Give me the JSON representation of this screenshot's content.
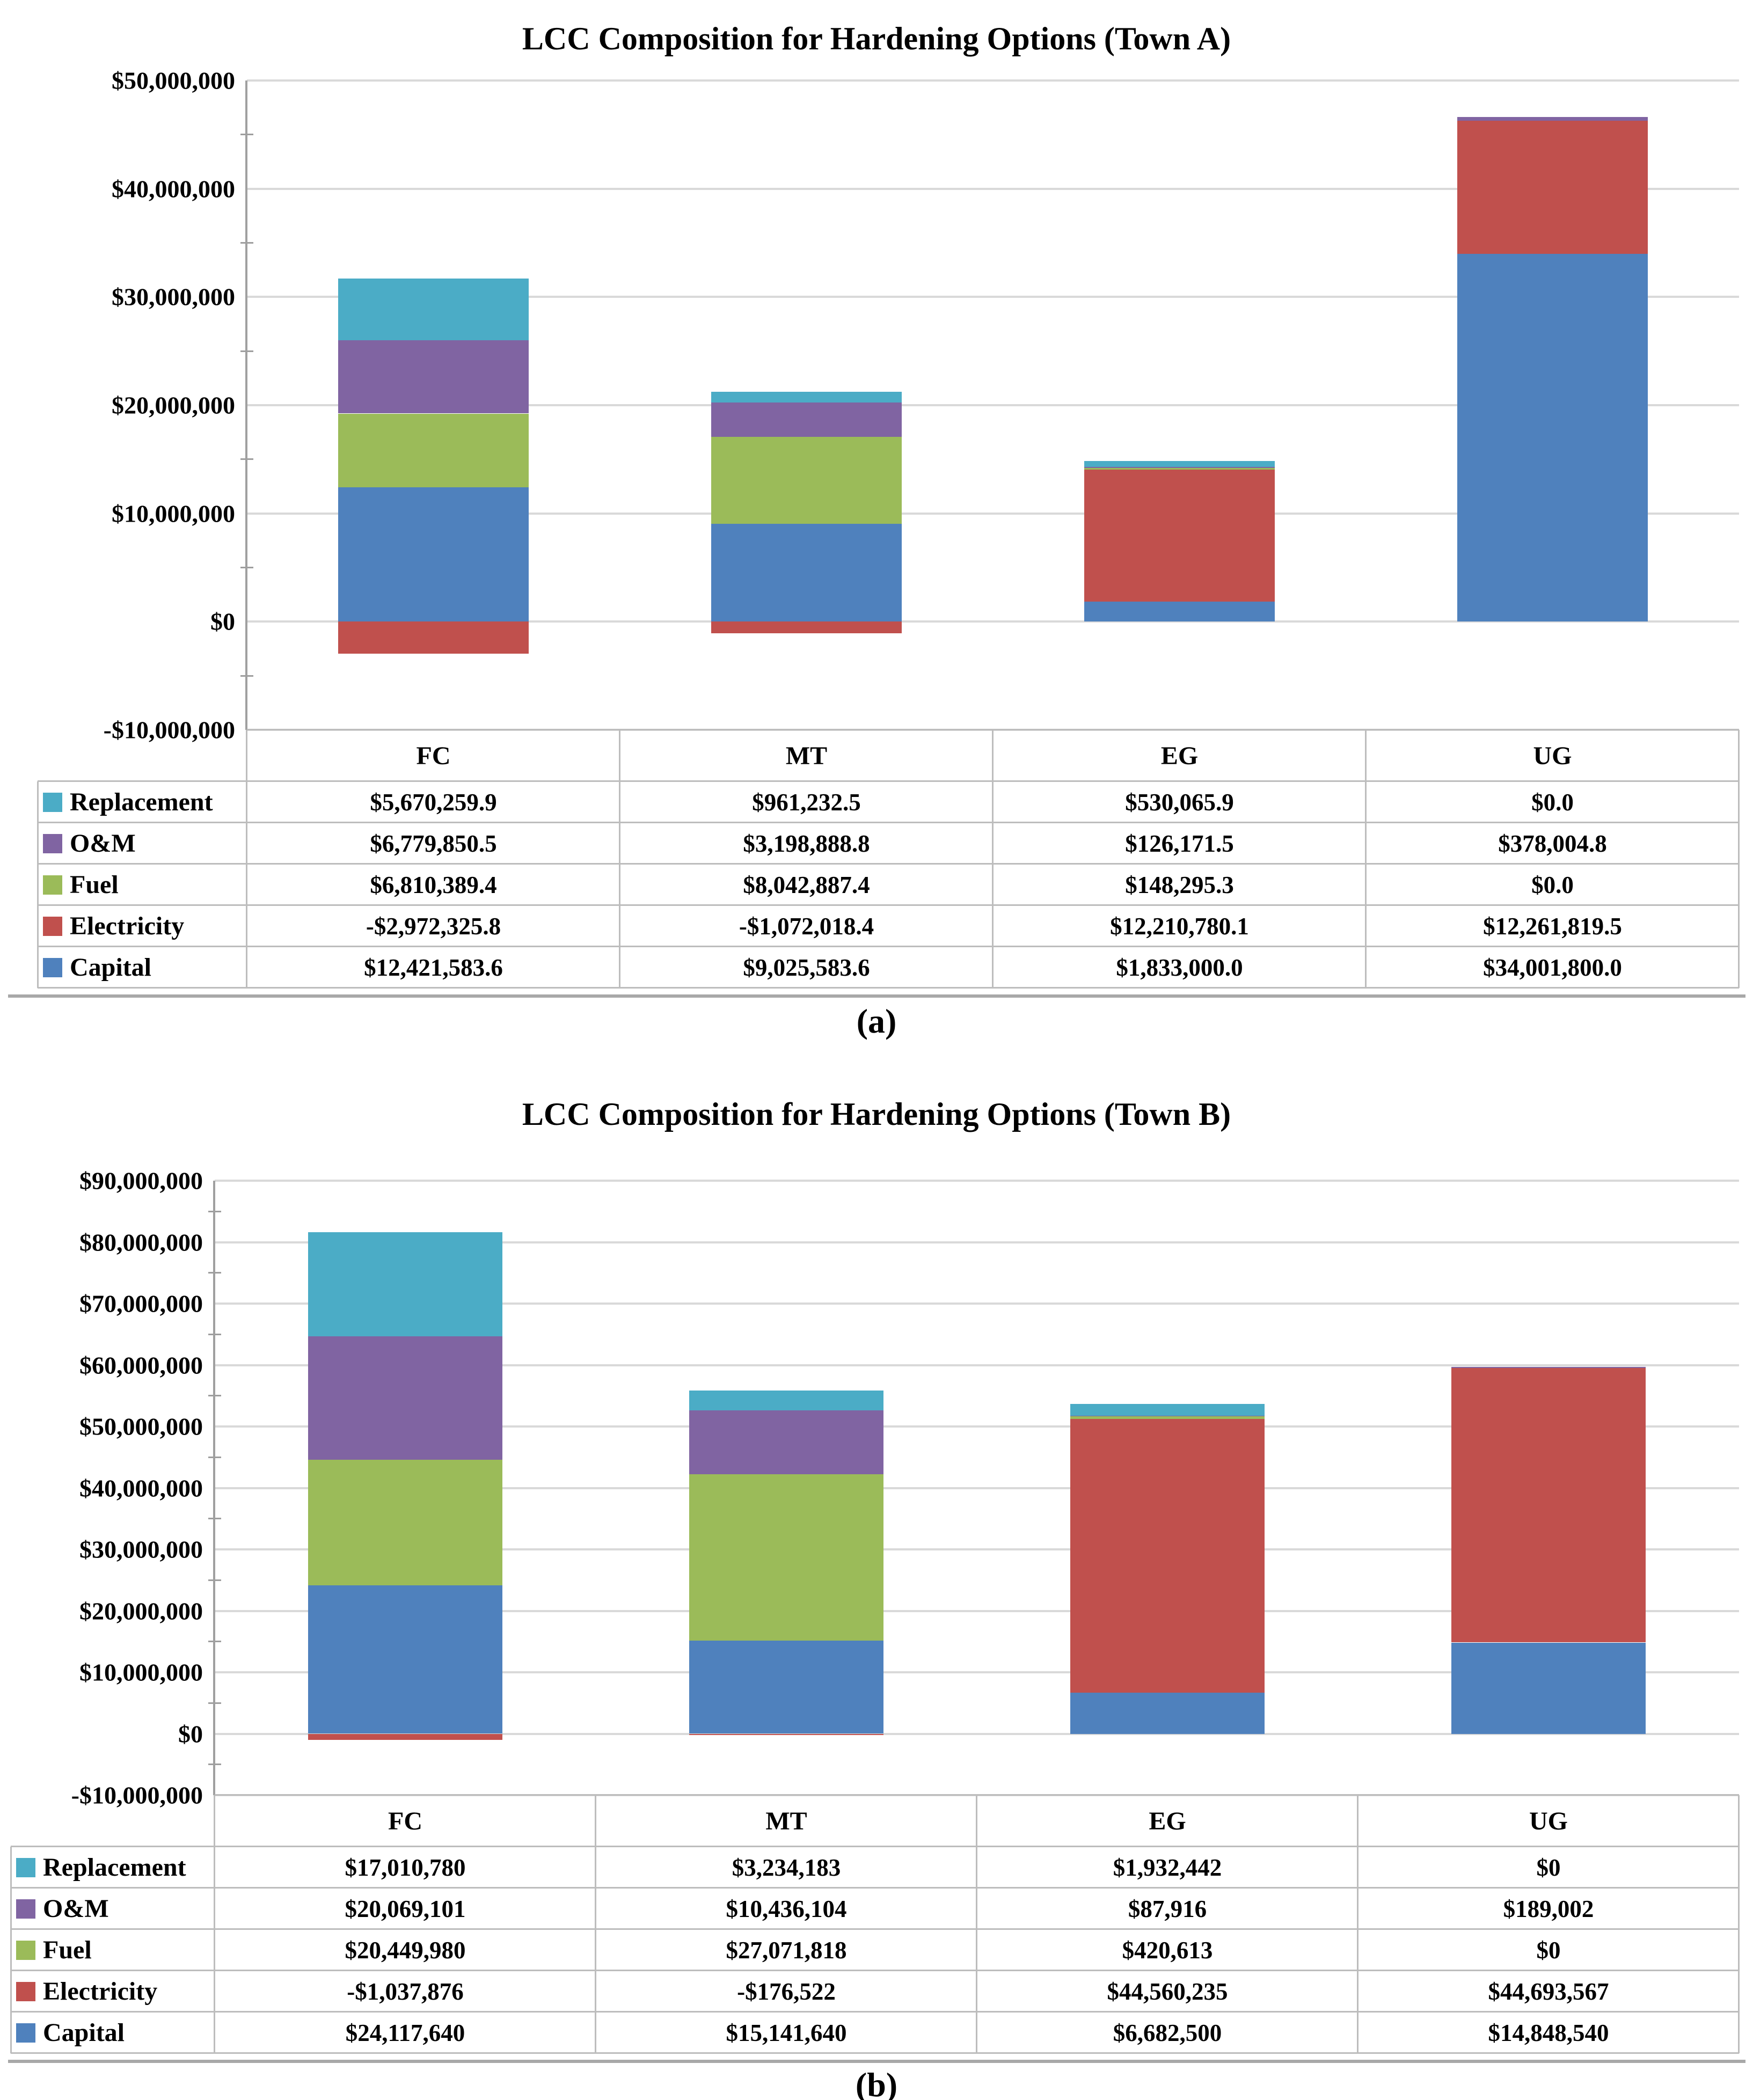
{
  "page": {
    "background": "#ffffff"
  },
  "figures": [
    {
      "caption": "(a)",
      "chart_data": {
        "type": "bar",
        "stacked": true,
        "title": "LCC Composition for Hardening Options (Town A)",
        "categories": [
          "FC",
          "MT",
          "EG",
          "UG"
        ],
        "series": [
          {
            "name": "Replacement",
            "color": "#4BACC6",
            "values": [
              5670259.9,
              961232.5,
              530065.9,
              0.0
            ],
            "labels": [
              "$5,670,259.9",
              "$961,232.5",
              "$530,065.9",
              "$0.0"
            ]
          },
          {
            "name": "O&M",
            "color": "#8064A2",
            "values": [
              6779850.5,
              3198888.8,
              126171.5,
              378004.8
            ],
            "labels": [
              "$6,779,850.5",
              "$3,198,888.8",
              "$126,171.5",
              "$378,004.8"
            ]
          },
          {
            "name": "Fuel",
            "color": "#9BBB59",
            "values": [
              6810389.4,
              8042887.4,
              148295.3,
              0.0
            ],
            "labels": [
              "$6,810,389.4",
              "$8,042,887.4",
              "$148,295.3",
              "$0.0"
            ]
          },
          {
            "name": "Electricity",
            "color": "#C0504D",
            "values": [
              -2972325.8,
              -1072018.4,
              12210780.1,
              12261819.5
            ],
            "labels": [
              "-$2,972,325.8",
              "-$1,072,018.4",
              "$12,210,780.1",
              "$12,261,819.5"
            ]
          },
          {
            "name": "Capital",
            "color": "#4F81BD",
            "values": [
              12421583.6,
              9025583.6,
              1833000.0,
              34001800.0
            ],
            "labels": [
              "$12,421,583.6",
              "$9,025,583.6",
              "$1,833,000.0",
              "$34,001,800.0"
            ]
          }
        ],
        "stack_order_bottom_to_top": [
          "Capital",
          "Electricity",
          "Fuel",
          "O&M",
          "Replacement"
        ],
        "ylim": [
          -10000000,
          50000000
        ],
        "ytick_step": 10000000,
        "minor_tick_step": 5000000,
        "ytick_labels_top_to_bottom": [
          "$50,000,000",
          "$40,000,000",
          "$30,000,000",
          "$20,000,000",
          "$10,000,000",
          "$0",
          "-$10,000,000"
        ],
        "grid": true,
        "legend_position": "row labels at left of data table below chart"
      }
    },
    {
      "caption": "(b)",
      "chart_data": {
        "type": "bar",
        "stacked": true,
        "title": "LCC Composition for Hardening Options (Town B)",
        "categories": [
          "FC",
          "MT",
          "EG",
          "UG"
        ],
        "series": [
          {
            "name": "Replacement",
            "color": "#4BACC6",
            "values": [
              17010780,
              3234183,
              1932442,
              0
            ],
            "labels": [
              "$17,010,780",
              "$3,234,183",
              "$1,932,442",
              "$0"
            ]
          },
          {
            "name": "O&M",
            "color": "#8064A2",
            "values": [
              20069101,
              10436104,
              87916,
              189002
            ],
            "labels": [
              "$20,069,101",
              "$10,436,104",
              "$87,916",
              "$189,002"
            ]
          },
          {
            "name": "Fuel",
            "color": "#9BBB59",
            "values": [
              20449980,
              27071818,
              420613,
              0
            ],
            "labels": [
              "$20,449,980",
              "$27,071,818",
              "$420,613",
              "$0"
            ]
          },
          {
            "name": "Electricity",
            "color": "#C0504D",
            "values": [
              -1037876,
              -176522,
              44560235,
              44693567
            ],
            "labels": [
              "-$1,037,876",
              "-$176,522",
              "$44,560,235",
              "$44,693,567"
            ]
          },
          {
            "name": "Capital",
            "color": "#4F81BD",
            "values": [
              24117640,
              15141640,
              6682500,
              14848540
            ],
            "labels": [
              "$24,117,640",
              "$15,141,640",
              "$6,682,500",
              "$14,848,540"
            ]
          }
        ],
        "stack_order_bottom_to_top": [
          "Capital",
          "Electricity",
          "Fuel",
          "O&M",
          "Replacement"
        ],
        "ylim": [
          -10000000,
          90000000
        ],
        "ytick_step": 10000000,
        "minor_tick_step": 5000000,
        "ytick_labels_top_to_bottom": [
          "$90,000,000",
          "$80,000,000",
          "$70,000,000",
          "$60,000,000",
          "$50,000,000",
          "$40,000,000",
          "$30,000,000",
          "$20,000,000",
          "$10,000,000",
          "$0",
          "-$10,000,000"
        ],
        "grid": true,
        "legend_position": "row labels at left of data table below chart"
      }
    }
  ]
}
